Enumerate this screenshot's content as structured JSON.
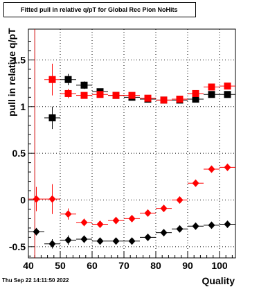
{
  "title": "Fitted pull in relative q/pT for Global Rec Pion NoHits",
  "timestamp": "Thu Sep 22 14:11:50 2022",
  "colors": {
    "red": "#ff0000",
    "black": "#000000",
    "cut_line": "#cc0000"
  },
  "chart_data": {
    "type": "scatter",
    "title": "Fitted pull in relative q/pT for Global Rec Pion NoHits",
    "xlabel": "Quality",
    "ylabel": "pull in relative q/pT",
    "xlim": [
      40,
      105
    ],
    "ylim": [
      -0.62,
      1.83
    ],
    "x_ticks": [
      40,
      50,
      60,
      70,
      80,
      90,
      100
    ],
    "y_ticks": [
      -0.5,
      0,
      0.5,
      1,
      1.5
    ],
    "y_tick_labels": [
      "-0.5",
      "0",
      "0.5",
      "1",
      "1.5"
    ],
    "grid": true,
    "cut_line_x": 42,
    "series": [
      {
        "color": "#000000",
        "marker": "square",
        "x": [
          47.5,
          52.5,
          57.5,
          62.5,
          67.5,
          72.5,
          77.5,
          82.5,
          87.5,
          92.5,
          97.5,
          102.5
        ],
        "y": [
          0.88,
          1.29,
          1.23,
          1.16,
          1.12,
          1.1,
          1.08,
          1.07,
          1.07,
          1.08,
          1.13,
          1.13
        ],
        "yerr": [
          0.12,
          0.06,
          0.04,
          0.03,
          0.02,
          0.02,
          0.02,
          0.02,
          0.02,
          0.02,
          0.02,
          0.02
        ]
      },
      {
        "color": "#ff0000",
        "marker": "square",
        "x": [
          47.5,
          52.5,
          57.5,
          62.5,
          67.5,
          72.5,
          77.5,
          82.5,
          87.5,
          92.5,
          97.5,
          102.5
        ],
        "y": [
          1.29,
          1.14,
          1.12,
          1.13,
          1.12,
          1.12,
          1.09,
          1.07,
          1.08,
          1.14,
          1.21,
          1.22
        ],
        "yerr": [
          0.17,
          0.05,
          0.03,
          0.03,
          0.02,
          0.02,
          0.02,
          0.02,
          0.02,
          0.02,
          0.02,
          0.02
        ]
      },
      {
        "color": "#ff0000",
        "marker": "diamond",
        "x": [
          42.5,
          47.5,
          52.5,
          57.5,
          62.5,
          67.5,
          72.5,
          77.5,
          82.5,
          87.5,
          92.5,
          97.5,
          102.5
        ],
        "y": [
          0.01,
          0.01,
          -0.15,
          -0.24,
          -0.26,
          -0.22,
          -0.2,
          -0.14,
          -0.09,
          0.0,
          0.18,
          0.33,
          0.35
        ],
        "yerr": [
          0.13,
          0.16,
          0.06,
          0.04,
          0.02,
          0.02,
          0.02,
          0.02,
          0.02,
          0.02,
          0.02,
          0.02,
          0.02
        ]
      },
      {
        "color": "#000000",
        "marker": "diamond",
        "x": [
          42.5,
          47.5,
          52.5,
          57.5,
          62.5,
          67.5,
          72.5,
          77.5,
          82.5,
          87.5,
          92.5,
          97.5,
          102.5
        ],
        "y": [
          -0.34,
          -0.47,
          -0.43,
          -0.42,
          -0.44,
          -0.44,
          -0.44,
          -0.4,
          -0.35,
          -0.31,
          -0.28,
          -0.27,
          -0.26
        ],
        "yerr": [
          0.04,
          0.05,
          0.05,
          0.04,
          0.02,
          0.02,
          0.02,
          0.02,
          0.02,
          0.02,
          0.02,
          0.02,
          0.02
        ]
      }
    ]
  }
}
